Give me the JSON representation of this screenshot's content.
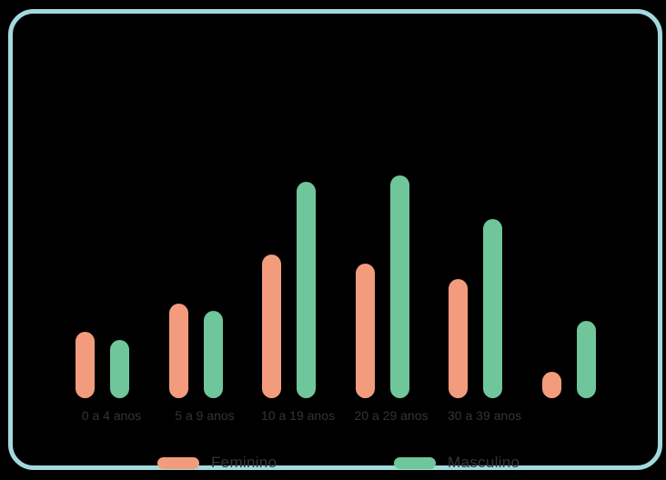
{
  "page": {
    "background_color": "#000000"
  },
  "card": {
    "border_color": "#A3D9DC"
  },
  "chart_data": {
    "type": "bar",
    "title": "",
    "xlabel": "",
    "ylabel": "",
    "categories": [
      "0 a 4 anos",
      "5 a 9 anos",
      "10 a 19 anos",
      "20 a 29 anos",
      "30 a 39 anos",
      ""
    ],
    "series": [
      {
        "name": "Feminino",
        "color": "#F39C7D",
        "values": [
          73,
          104,
          158,
          148,
          131,
          29
        ]
      },
      {
        "name": "Masculino",
        "color": "#6FC69B",
        "values": [
          64,
          96,
          238,
          245,
          197,
          85
        ]
      }
    ],
    "ylim": [
      0,
      245
    ],
    "grid": false,
    "y_axis_shown": false,
    "legend_position": "bottom",
    "axis_label_color": "#33333B"
  },
  "legend": {
    "items": [
      {
        "label": "Feminino",
        "color": "#F39C7D"
      },
      {
        "label": "Masculino",
        "color": "#6FC69B"
      }
    ]
  }
}
